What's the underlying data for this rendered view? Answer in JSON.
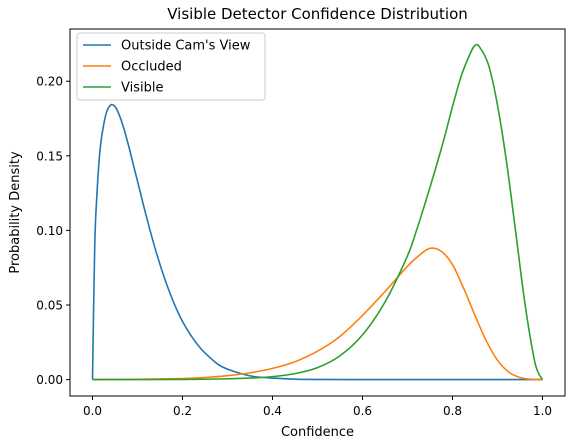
{
  "chart_data": {
    "type": "line",
    "title": "Visible Detector Confidence Distribution",
    "xlabel": "Confidence",
    "ylabel": "Probability Density",
    "xlim": [
      -0.05,
      1.05
    ],
    "ylim": [
      -0.011,
      0.235
    ],
    "xticks": [
      0.0,
      0.2,
      0.4,
      0.6,
      0.8,
      1.0
    ],
    "xtick_labels": [
      "0.0",
      "0.2",
      "0.4",
      "0.6",
      "0.8",
      "1.0"
    ],
    "yticks": [
      0.0,
      0.05,
      0.1,
      0.15,
      0.2
    ],
    "ytick_labels": [
      "0.00",
      "0.05",
      "0.10",
      "0.15",
      "0.20"
    ],
    "grid": false,
    "legend": "top-left",
    "series": [
      {
        "name": "Outside Cam's View",
        "color": "#1f77b4",
        "x": [
          0.0,
          0.005,
          0.01,
          0.015,
          0.02,
          0.03,
          0.04,
          0.05,
          0.06,
          0.07,
          0.08,
          0.09,
          0.1,
          0.12,
          0.14,
          0.16,
          0.18,
          0.2,
          0.22,
          0.24,
          0.26,
          0.28,
          0.3,
          0.33,
          0.36,
          0.4,
          0.45,
          0.5,
          0.6,
          0.7,
          0.8,
          0.9,
          1.0
        ],
        "y": [
          0.0,
          0.09,
          0.125,
          0.148,
          0.162,
          0.178,
          0.184,
          0.183,
          0.177,
          0.168,
          0.157,
          0.145,
          0.133,
          0.109,
          0.087,
          0.068,
          0.052,
          0.039,
          0.029,
          0.021,
          0.015,
          0.01,
          0.007,
          0.004,
          0.002,
          0.001,
          0.0003,
          0.0001,
          0.0,
          0.0,
          0.0,
          0.0,
          0.0
        ]
      },
      {
        "name": "Occluded",
        "color": "#ff7f0e",
        "x": [
          0.0,
          0.1,
          0.2,
          0.25,
          0.3,
          0.35,
          0.4,
          0.45,
          0.5,
          0.55,
          0.6,
          0.65,
          0.7,
          0.725,
          0.75,
          0.775,
          0.8,
          0.825,
          0.85,
          0.875,
          0.9,
          0.925,
          0.95,
          0.975,
          1.0
        ],
        "y": [
          0.0,
          0.0002,
          0.0007,
          0.0014,
          0.0026,
          0.0045,
          0.0075,
          0.012,
          0.019,
          0.029,
          0.043,
          0.059,
          0.076,
          0.083,
          0.088,
          0.086,
          0.077,
          0.061,
          0.043,
          0.026,
          0.013,
          0.005,
          0.0014,
          0.0002,
          0.0
        ]
      },
      {
        "name": "Visible",
        "color": "#2ca02c",
        "x": [
          0.0,
          0.2,
          0.3,
          0.35,
          0.4,
          0.45,
          0.5,
          0.55,
          0.6,
          0.65,
          0.7,
          0.72,
          0.74,
          0.76,
          0.78,
          0.8,
          0.82,
          0.84,
          0.85,
          0.86,
          0.88,
          0.9,
          0.92,
          0.94,
          0.96,
          0.98,
          0.99,
          1.0
        ],
        "y": [
          0.0,
          0.0001,
          0.0005,
          0.001,
          0.002,
          0.004,
          0.008,
          0.016,
          0.03,
          0.052,
          0.083,
          0.1,
          0.119,
          0.139,
          0.16,
          0.183,
          0.204,
          0.219,
          0.224,
          0.223,
          0.211,
          0.184,
          0.146,
          0.1,
          0.053,
          0.016,
          0.005,
          0.0
        ]
      }
    ]
  }
}
